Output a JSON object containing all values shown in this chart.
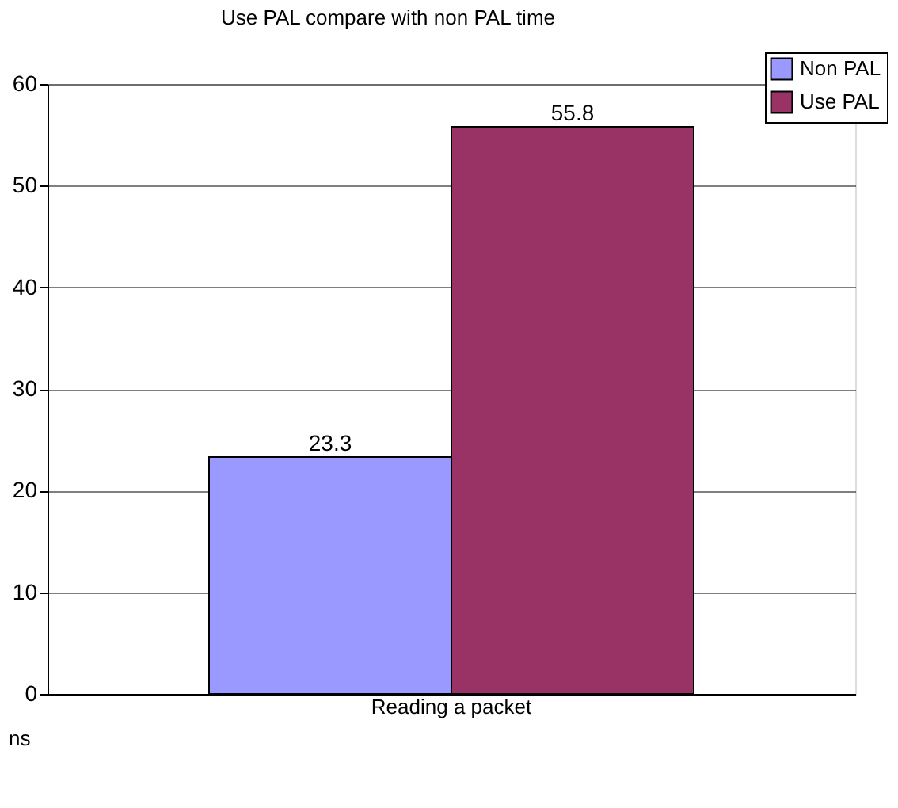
{
  "chart_data": {
    "type": "bar",
    "title": "Use PAL compare with non PAL time",
    "ylabel": "ns",
    "categories": [
      "Reading a packet"
    ],
    "series": [
      {
        "name": "Non PAL",
        "color": "#9999ff",
        "values": [
          23.3
        ]
      },
      {
        "name": "Use PAL",
        "color": "#993366",
        "values": [
          55.8
        ]
      }
    ],
    "ylim": [
      0,
      60
    ],
    "yticks": [
      0,
      10,
      20,
      30,
      40,
      50,
      60
    ],
    "grid": "y",
    "legend": "top right",
    "data_labels": true
  }
}
